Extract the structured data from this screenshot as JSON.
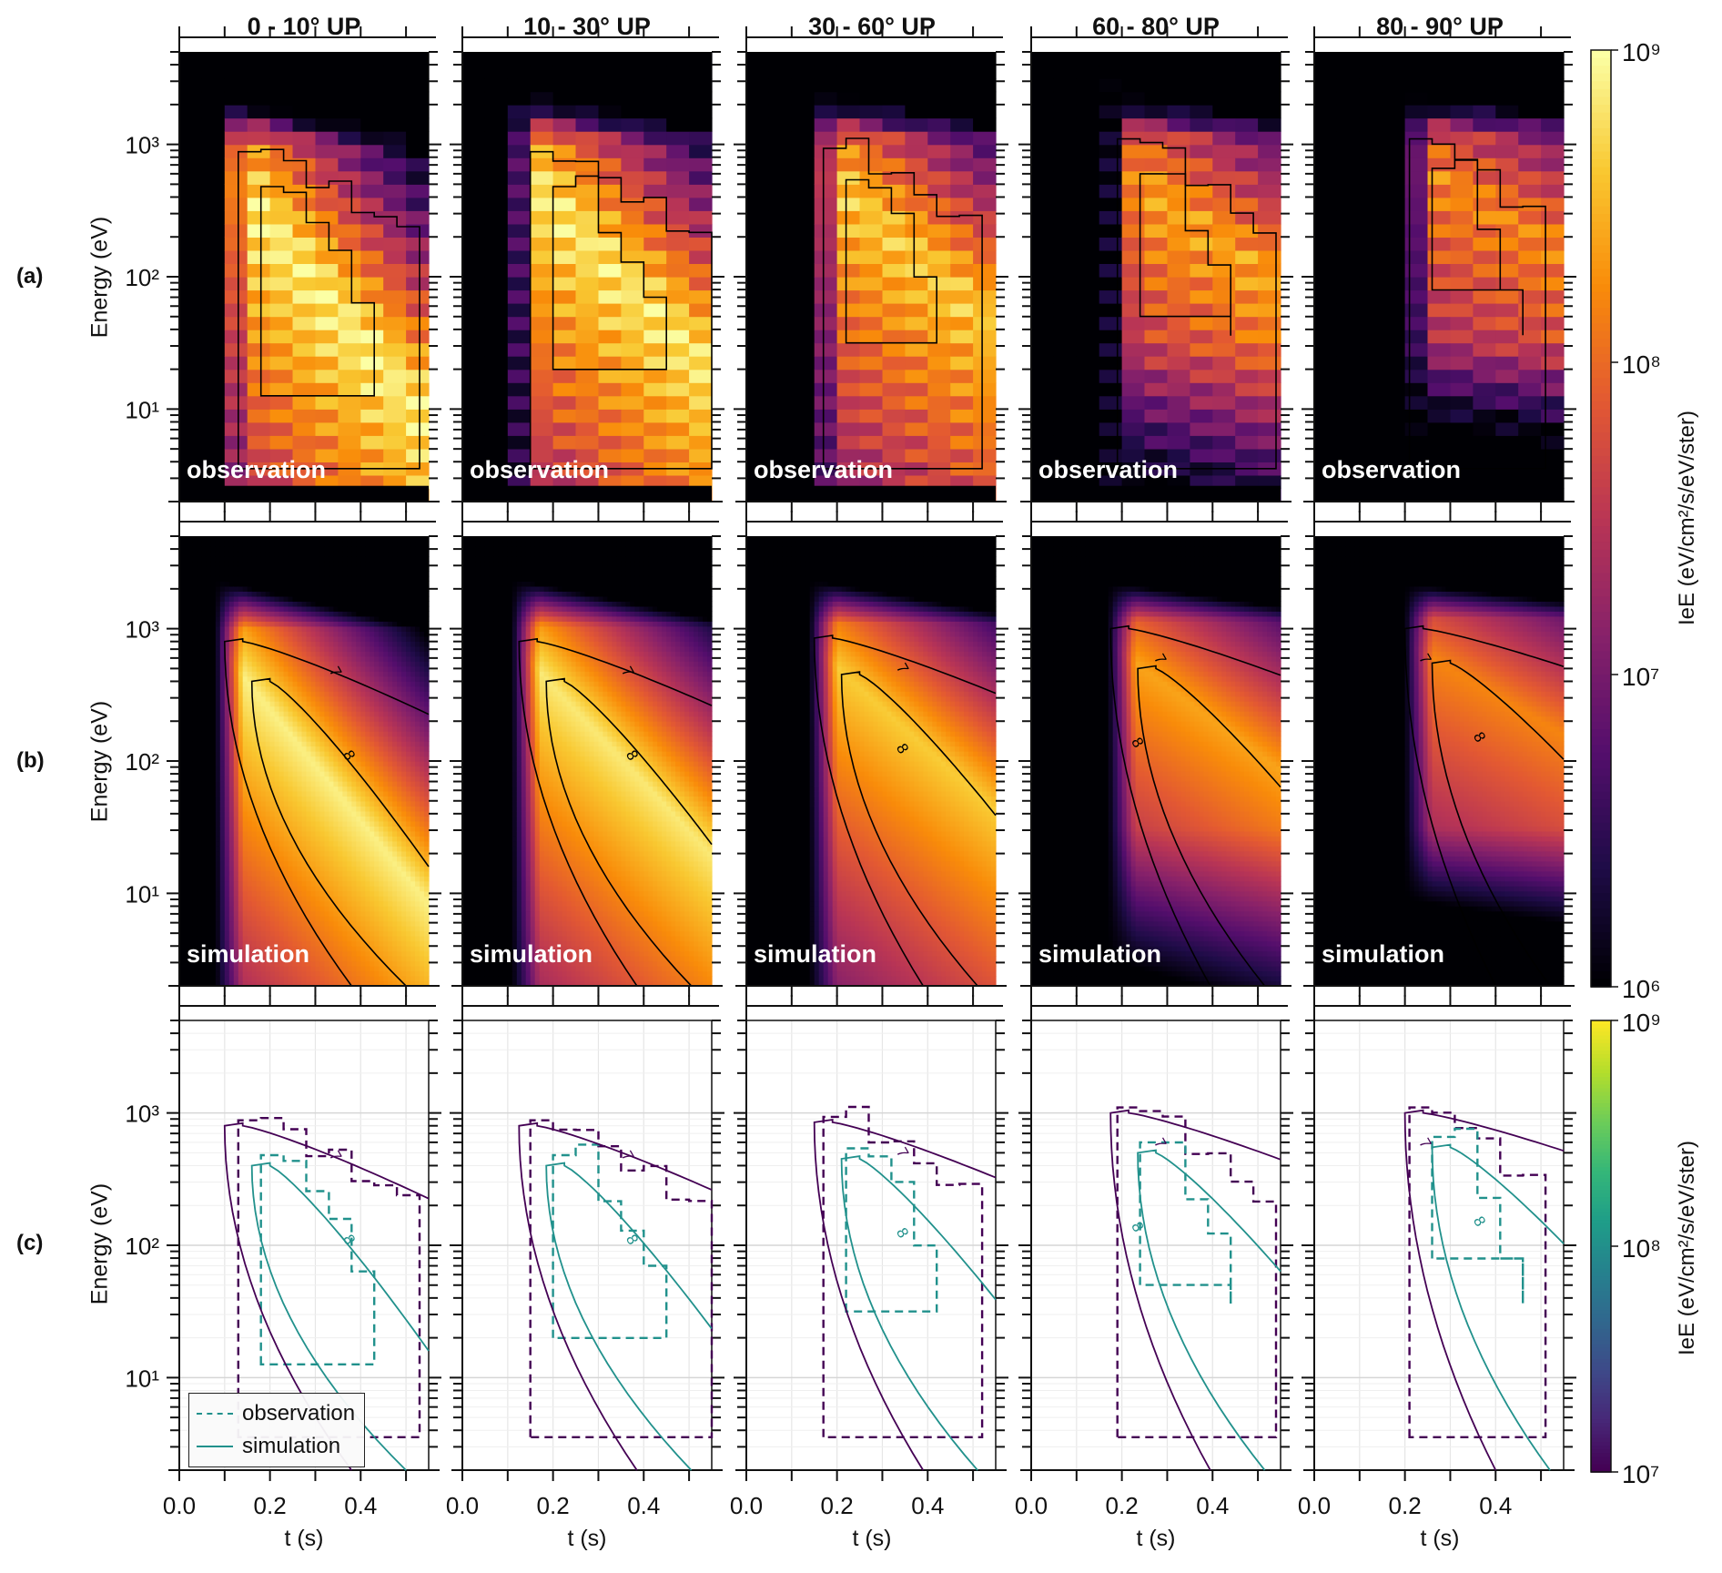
{
  "figure": {
    "row_labels": [
      "(a)",
      "(b)",
      "(c)"
    ],
    "column_titles": [
      "0 - 10° UP",
      "10 - 30° UP",
      "30 - 60° UP",
      "60 - 80° UP",
      "80 - 90° UP"
    ],
    "panel_tags": {
      "a": "observation",
      "b": "simulation"
    },
    "ylabel": "Energy (eV)",
    "xlabel": "t (s)",
    "legend": {
      "observation": "observation",
      "simulation": "simulation"
    },
    "colorbar_top": {
      "label": "IeE (eV/cm²/s/eV/ster)",
      "colormap": "inferno",
      "ticks": [
        "10⁹",
        "10⁸",
        "10⁷",
        "10⁶"
      ]
    },
    "colorbar_bottom": {
      "label": "IeE (eV/cm²/s/eV/ster)",
      "colormap": "viridis",
      "ticks": [
        "10⁹",
        "10⁸",
        "10⁷"
      ]
    },
    "colors": {
      "contour_7_viridis": "#440154",
      "contour_8_viridis": "#21918c",
      "grid": "#e6e6e6",
      "axis": "#111111"
    }
  },
  "chart_data": {
    "type": "heatmap",
    "title": "Electron energy flux (IeE) vs time and energy, by pitch-angle bin (upgoing)",
    "xlabel": "t (s)",
    "ylabel": "Energy (eV)",
    "xlim": [
      0.0,
      0.55
    ],
    "ylim": [
      2,
      5000
    ],
    "yscale": "log",
    "x_ticks": [
      "0.0",
      "0.2",
      "0.4"
    ],
    "x_minor_ticks": [
      0.1,
      0.3,
      0.5
    ],
    "y_ticks": [
      "10¹",
      "10²",
      "10³"
    ],
    "y_tick_values": [
      10,
      100,
      1000
    ],
    "colorbar_rows_ab": {
      "range": [
        1000000.0,
        1000000000.0
      ],
      "scale": "log",
      "cmap": "inferno"
    },
    "colorbar_row_c": {
      "range": [
        10000000.0,
        1000000000.0
      ],
      "scale": "log",
      "cmap": "viridis"
    },
    "contour_levels_log10": [
      7,
      8
    ],
    "contour_labels": [
      "7",
      "8"
    ],
    "rows": [
      {
        "row": "a",
        "content": "observation (binned heatmap, black contours at 10^7, 10^8)"
      },
      {
        "row": "b",
        "content": "simulation (smooth heatmap, labeled contours 7, 8)"
      },
      {
        "row": "c",
        "content": "contour comparison: observation dashed, simulation solid; purple = 10^7, teal = 10^8"
      }
    ],
    "panels": [
      {
        "title": "0 - 10° UP",
        "peak_t": 0.3,
        "peak_E_log10": 1.0,
        "sim_peak_log10": 8.9,
        "obs_peak_log10": 8.7,
        "sim_contour7_top_E": 800,
        "sim_contour8_top_E": 400,
        "sim_contour8_label_t": 0.36,
        "sim_contour7_label_t": 0.33
      },
      {
        "title": "10 - 30° UP",
        "peak_t": 0.3,
        "peak_E_log10": 1.0,
        "sim_peak_log10": 8.85,
        "obs_peak_log10": 8.6,
        "sim_contour7_top_E": 800,
        "sim_contour8_top_E": 400,
        "sim_contour8_label_t": 0.36,
        "sim_contour7_label_t": 0.35
      },
      {
        "title": "30 - 60° UP",
        "peak_t": 0.35,
        "peak_E_log10": 1.3,
        "sim_peak_log10": 8.65,
        "obs_peak_log10": 8.45,
        "sim_contour7_top_E": 850,
        "sim_contour8_top_E": 450,
        "sim_contour8_label_t": 0.33,
        "sim_contour7_label_t": 0.33
      },
      {
        "title": "60 - 80° UP",
        "peak_t": 0.4,
        "peak_E_log10": 2.0,
        "sim_peak_log10": 8.4,
        "obs_peak_log10": 8.45,
        "sim_contour7_top_E": 1000,
        "sim_contour8_top_E": 500,
        "sim_contour8_label_t": 0.22,
        "sim_contour7_label_t": 0.27
      },
      {
        "title": "80 - 90° UP",
        "peak_t": 0.5,
        "peak_E_log10": 2.4,
        "sim_peak_log10": 8.2,
        "obs_peak_log10": 8.4,
        "sim_contour7_top_E": 1000,
        "sim_contour8_top_E": 550,
        "sim_contour8_label_t": 0.35,
        "sim_contour7_label_t": 0.23
      }
    ]
  }
}
